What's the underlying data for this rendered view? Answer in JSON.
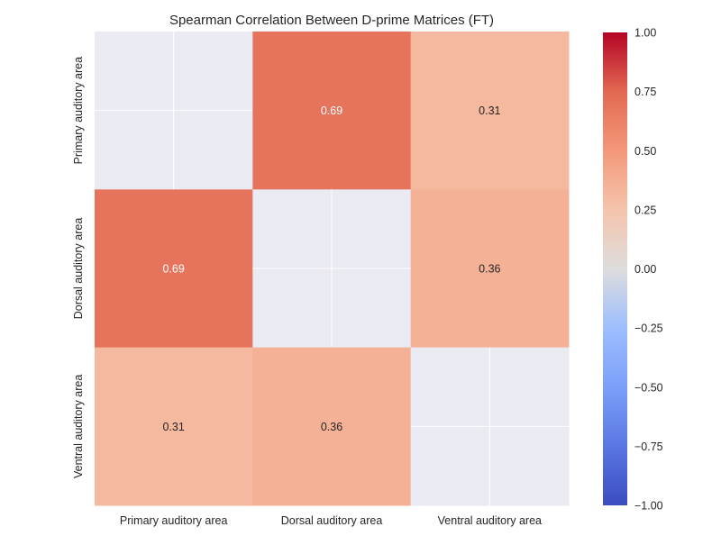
{
  "chart_data": {
    "type": "heatmap",
    "title": "Spearman Correlation Between D-prime Matrices (FT)",
    "row_labels": [
      "Primary auditory area",
      "Dorsal auditory area",
      "Ventral auditory area"
    ],
    "col_labels": [
      "Primary auditory area",
      "Dorsal auditory area",
      "Ventral auditory area"
    ],
    "values": [
      [
        null,
        0.69,
        0.31
      ],
      [
        0.69,
        null,
        0.36
      ],
      [
        0.31,
        0.36,
        null
      ]
    ],
    "annotations": [
      [
        "",
        "0.69",
        "0.31"
      ],
      [
        "0.69",
        "",
        "0.36"
      ],
      [
        "0.31",
        "0.36",
        ""
      ]
    ],
    "colormap": "coolwarm",
    "vmin": -1.0,
    "vmax": 1.0,
    "colorbar_ticks": [
      "1.00",
      "0.75",
      "0.50",
      "0.25",
      "0.00",
      "−0.25",
      "−0.50",
      "−0.75",
      "−1.00"
    ],
    "colorbar_tick_values": [
      1.0,
      0.75,
      0.5,
      0.25,
      0.0,
      -0.25,
      -0.5,
      -0.75,
      -1.0
    ],
    "masked_color": "#eaeaf2",
    "grid": true
  }
}
